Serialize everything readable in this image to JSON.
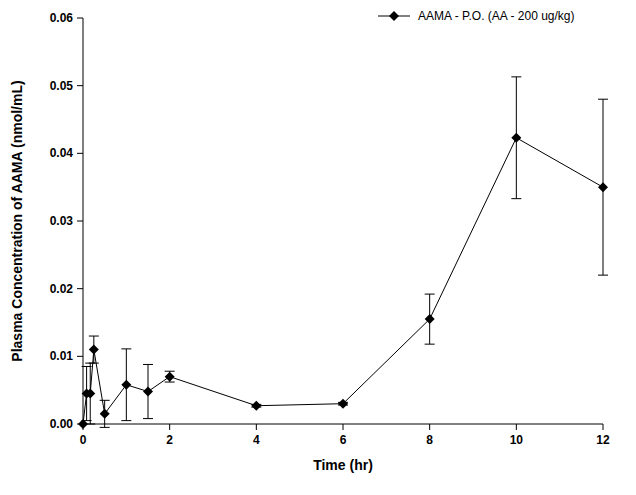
{
  "chart_data": {
    "type": "line",
    "x_label": "Time (hr)",
    "y_label": "Plasma Concentration of AAMA (nmol/mL)",
    "x": [
      0,
      0.083,
      0.167,
      0.25,
      0.5,
      1,
      1.5,
      2,
      4,
      6,
      8,
      10,
      12
    ],
    "series": [
      {
        "name": "AAMA - P.O. (AA - 200 ug/kg)",
        "color": "#000000",
        "marker": "diamond",
        "line_style": "solid",
        "values": [
          0,
          0.0045,
          0.0045,
          0.011,
          0.0015,
          0.0058,
          0.0048,
          0.007,
          0.0027,
          0.003,
          0.0155,
          0.0423,
          0.035
        ],
        "errors": [
          0,
          0.004,
          0.0045,
          0.002,
          0.002,
          0.0053,
          0.004,
          0.0008,
          0.0002,
          0.0002,
          0.0037,
          0.009,
          0.013
        ]
      }
    ],
    "xlim": [
      0,
      12
    ],
    "ylim": [
      0,
      0.06
    ],
    "xticks": [
      0,
      2,
      4,
      6,
      8,
      10,
      12
    ],
    "yticks": [
      {
        "value": 0,
        "label": "0.00"
      },
      0.01,
      0.02,
      0.03,
      0.04,
      0.05,
      0.06
    ],
    "legend": "upper right",
    "grid": false
  }
}
